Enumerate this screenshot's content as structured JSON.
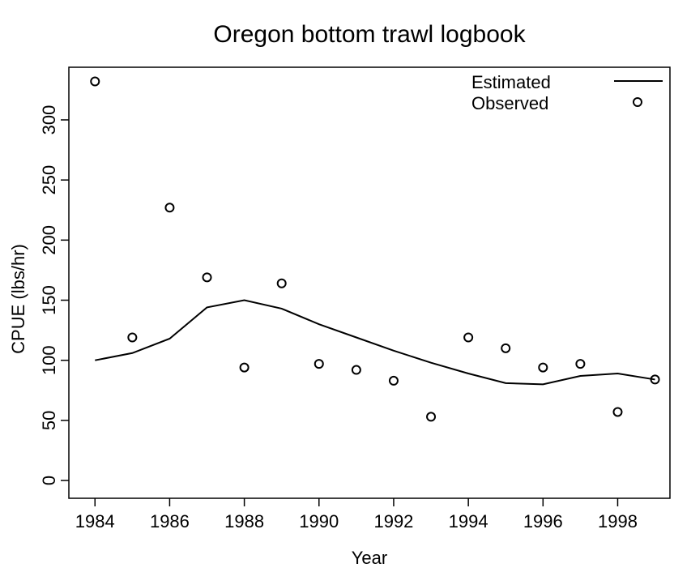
{
  "chart_data": {
    "type": "line",
    "title": "Oregon bottom trawl logbook",
    "x_label": "Year",
    "y_label": "CPUE (lbs/hr)",
    "x": [
      1984,
      1985,
      1986,
      1987,
      1988,
      1989,
      1990,
      1991,
      1992,
      1993,
      1994,
      1995,
      1996,
      1997,
      1998,
      1999
    ],
    "series": [
      {
        "name": "Estimated",
        "color": "#000000",
        "style": "line",
        "values": [
          100,
          106,
          118,
          144,
          150,
          143,
          130,
          119,
          108,
          98,
          89,
          81,
          80,
          87,
          89,
          84
        ]
      },
      {
        "name": "Observed",
        "color": "#000000",
        "style": "points",
        "values": [
          332,
          119,
          227,
          169,
          94,
          164,
          97,
          92,
          83,
          53,
          119,
          110,
          94,
          97,
          57,
          84
        ]
      }
    ],
    "xlim": [
      1983.3,
      1999.4
    ],
    "ylim": [
      -14.8,
      343.8
    ],
    "xticks": [
      1984,
      1986,
      1988,
      1990,
      1992,
      1994,
      1996,
      1998
    ],
    "yticks": [
      0,
      50,
      100,
      150,
      200,
      250,
      300
    ],
    "legend": "top-right"
  }
}
